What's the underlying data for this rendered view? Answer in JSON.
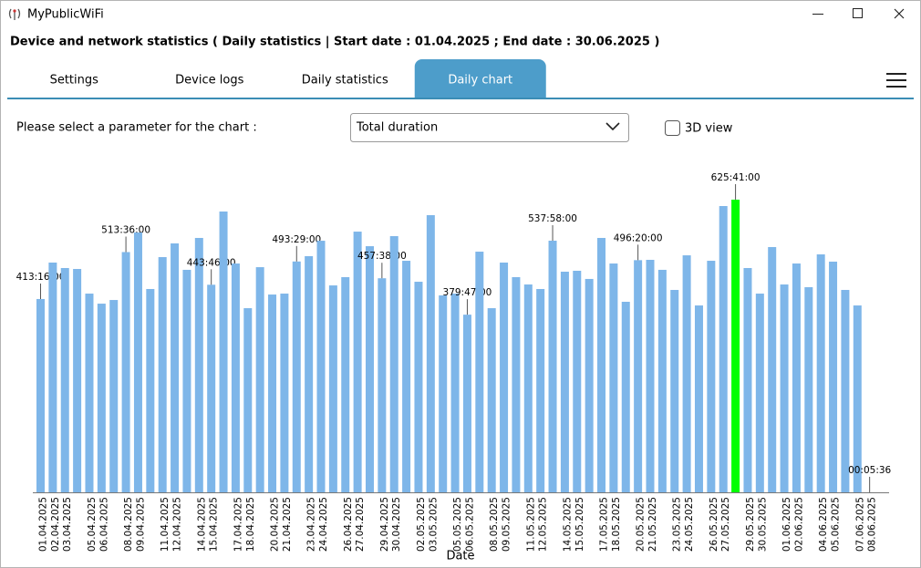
{
  "window": {
    "title": "MyPublicWiFi"
  },
  "header": {
    "title": "Device and network statistics ( Daily statistics | Start date : 01.04.2025 ; End date : 30.06.2025 )"
  },
  "tabs": [
    {
      "label": "Settings",
      "active": false
    },
    {
      "label": "Device logs",
      "active": false
    },
    {
      "label": "Daily statistics",
      "active": false
    },
    {
      "label": "Daily chart",
      "active": true
    }
  ],
  "controls": {
    "parameter_label": "Please select a parameter for the chart :",
    "parameter_value": "Total duration",
    "view_3d_label": "3D view",
    "view_3d_checked": false
  },
  "chart_data": {
    "type": "bar",
    "x_label": "Date",
    "categories": [
      "01.04.2025",
      "02.04.2025",
      "03.04.2025",
      null,
      "05.04.2025",
      "06.04.2025",
      null,
      "08.04.2025",
      "09.04.2025",
      null,
      "11.04.2025",
      "12.04.2025",
      null,
      "14.04.2025",
      "15.04.2025",
      null,
      "17.04.2025",
      "18.04.2025",
      null,
      "20.04.2025",
      "21.04.2025",
      null,
      "23.04.2025",
      "24.04.2025",
      null,
      "26.04.2025",
      "27.04.2025",
      null,
      "29.04.2025",
      "30.04.2025",
      null,
      "02.05.2025",
      "03.05.2025",
      null,
      "05.05.2025",
      "06.05.2025",
      null,
      "08.05.2025",
      "09.05.2025",
      null,
      "11.05.2025",
      "12.05.2025",
      null,
      "14.05.2025",
      "15.05.2025",
      null,
      "17.05.2025",
      "18.05.2025",
      null,
      "20.05.2025",
      "21.05.2025",
      null,
      "23.05.2025",
      "24.05.2025",
      null,
      "26.05.2025",
      "27.05.2025",
      null,
      "29.05.2025",
      "30.05.2025",
      null,
      "01.06.2025",
      "02.06.2025",
      null,
      "04.06.2025",
      "05.06.2025",
      null,
      "07.06.2025",
      "08.06.2025"
    ],
    "values": [
      24796,
      29470,
      28770,
      28650,
      25490,
      24200,
      24670,
      30816,
      33330,
      26080,
      30170,
      31930,
      28540,
      32630,
      26626,
      36020,
      29350,
      23620,
      28880,
      25370,
      25490,
      29609,
      30290,
      32270,
      26540,
      27600,
      33440,
      31570,
      27458,
      32860,
      29700,
      27010,
      35550,
      25260,
      25490,
      22787,
      30870,
      23620,
      29470,
      27600,
      26660,
      26080,
      32278,
      28300,
      28420,
      27370,
      32630,
      29350,
      24440,
      29780,
      29820,
      28540,
      25960,
      30400,
      23970,
      29700,
      36720,
      37541,
      28770,
      25490,
      31460,
      26660,
      29350,
      26310,
      30520,
      29590,
      25960,
      23970,
      5.6
    ],
    "value_labels": [
      "413:16:00",
      null,
      null,
      null,
      null,
      null,
      null,
      "513:36:00",
      null,
      null,
      null,
      null,
      null,
      null,
      "443:46:00",
      null,
      null,
      null,
      null,
      null,
      null,
      "493:29:00",
      null,
      null,
      null,
      null,
      null,
      null,
      "457:38:00",
      null,
      null,
      null,
      null,
      null,
      null,
      "379:47:00",
      null,
      null,
      null,
      null,
      null,
      null,
      "537:58:00",
      null,
      null,
      null,
      null,
      null,
      null,
      "496:20:00",
      null,
      null,
      null,
      null,
      null,
      null,
      null,
      "625:41:00",
      null,
      null,
      null,
      null,
      null,
      null,
      null,
      null,
      null,
      null,
      "00:05:36"
    ],
    "colors": [
      "#7eb6e9",
      "#7eb6e9",
      "#7eb6e9",
      "#7eb6e9",
      "#7eb6e9",
      "#7eb6e9",
      "#7eb6e9",
      "#7eb6e9",
      "#7eb6e9",
      "#7eb6e9",
      "#7eb6e9",
      "#7eb6e9",
      "#7eb6e9",
      "#7eb6e9",
      "#7eb6e9",
      "#7eb6e9",
      "#7eb6e9",
      "#7eb6e9",
      "#7eb6e9",
      "#7eb6e9",
      "#7eb6e9",
      "#7eb6e9",
      "#7eb6e9",
      "#7eb6e9",
      "#7eb6e9",
      "#7eb6e9",
      "#7eb6e9",
      "#7eb6e9",
      "#7eb6e9",
      "#7eb6e9",
      "#7eb6e9",
      "#7eb6e9",
      "#7eb6e9",
      "#7eb6e9",
      "#7eb6e9",
      "#7eb6e9",
      "#7eb6e9",
      "#7eb6e9",
      "#7eb6e9",
      "#7eb6e9",
      "#7eb6e9",
      "#7eb6e9",
      "#7eb6e9",
      "#7eb6e9",
      "#7eb6e9",
      "#7eb6e9",
      "#7eb6e9",
      "#7eb6e9",
      "#7eb6e9",
      "#7eb6e9",
      "#7eb6e9",
      "#7eb6e9",
      "#7eb6e9",
      "#7eb6e9",
      "#7eb6e9",
      "#7eb6e9",
      "#7eb6e9",
      "#00ff00",
      "#7eb6e9",
      "#7eb6e9",
      "#7eb6e9",
      "#7eb6e9",
      "#7eb6e9",
      "#7eb6e9",
      "#7eb6e9",
      "#7eb6e9",
      "#7eb6e9",
      "#7eb6e9",
      "#7eb6e9"
    ],
    "ylim": [
      0,
      42100
    ]
  }
}
